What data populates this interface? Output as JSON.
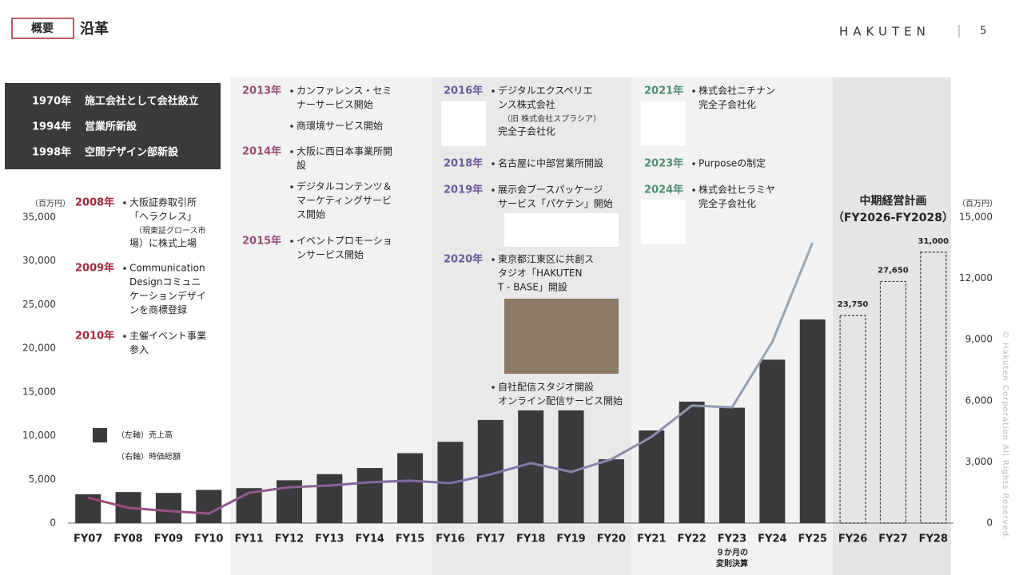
{
  "header": {
    "section": "概要",
    "title": "沿革",
    "logo": "HAKUTEN",
    "page": "5"
  },
  "copyright": "© Hakuten Corporation All Rights Reserved.",
  "history_box": [
    {
      "year": "1970年",
      "text": "施工会社として会社設立"
    },
    {
      "year": "1994年",
      "text": "営業所新設"
    },
    {
      "year": "1998年",
      "text": "空間デザイン部新設"
    }
  ],
  "timeline": [
    {
      "color": "#a0283c",
      "entries": [
        {
          "year": "2008年",
          "items": [
            [
              "大阪証券取引所",
              "「ヘラクレス」",
              "（現東証グロース市",
              "場）に株式上場"
            ]
          ]
        },
        {
          "year": "2009年",
          "items": [
            [
              "Communication",
              "Designコミュニ",
              "ケーションデザイ",
              "ンを商標登録"
            ]
          ]
        },
        {
          "year": "2010年",
          "items": [
            [
              "主催イベント事業",
              "参入"
            ]
          ]
        }
      ]
    },
    {
      "color": "#9a4d72",
      "entries": [
        {
          "year": "2013年",
          "items": [
            [
              "カンファレンス・セミ",
              "ナーサービス開始"
            ],
            [
              "商環境サービス開始"
            ]
          ]
        },
        {
          "year": "2014年",
          "items": [
            [
              "大阪に西日本事業所開",
              "設"
            ],
            [
              "デジタルコンテンツ＆",
              "マーケティングサービ",
              "ス開始"
            ]
          ]
        },
        {
          "year": "2015年",
          "items": [
            [
              "イベントプロモーショ",
              "ンサービス開始"
            ]
          ]
        }
      ]
    },
    {
      "color": "#6b5b9a",
      "entries": [
        {
          "year": "2016年",
          "items": [
            [
              "デジタルエクスペリエ",
              "ンス株式会社",
              "（旧 株式会社スプラシア）",
              "完全子会社化"
            ]
          ]
        },
        {
          "year": "2018年",
          "items": [
            [
              "名古屋に中部営業所開設"
            ]
          ]
        },
        {
          "year": "2019年",
          "items": [
            [
              "展示会ブースパッケージ",
              "サービス「パケテン」開始"
            ]
          ]
        },
        {
          "year": "2020年",
          "items": [
            [
              "東京都江東区に共創ス",
              "タジオ「HAKUTEN",
              "T - BASE」開設"
            ],
            [
              "自社配信スタジオ開設",
              "オンライン配信サービス開始"
            ]
          ]
        }
      ]
    },
    {
      "color": "#4e8f6e",
      "entries": [
        {
          "year": "2021年",
          "items": [
            [
              "株式会社ニチナン",
              "完全子会社化"
            ]
          ]
        },
        {
          "year": "2023年",
          "items": [
            [
              "Purposeの制定"
            ]
          ]
        },
        {
          "year": "2024年",
          "items": [
            [
              "株式会社ヒラミヤ",
              "完全子会社化"
            ]
          ]
        }
      ]
    }
  ],
  "chart_data": {
    "type": "bar-line",
    "plan_label": [
      "中期経営計画",
      "（FY2026-FY2028）"
    ],
    "note": {
      "category": "FY23",
      "lines": [
        "９か月の",
        "変則決算"
      ]
    },
    "y_unit": "（百万円）",
    "y2_unit": "（百万円）",
    "categories": [
      "FY07",
      "FY08",
      "FY09",
      "FY10",
      "FY11",
      "FY12",
      "FY13",
      "FY14",
      "FY15",
      "FY16",
      "FY17",
      "FY18",
      "FY19",
      "FY20",
      "FY21",
      "FY22",
      "FY23",
      "FY24",
      "FY25",
      "FY26",
      "FY27",
      "FY28"
    ],
    "ylim": [
      0,
      35000
    ],
    "yticks": [
      0,
      {
        "value": 5000,
        "label": "5,000"
      },
      {
        "value": 10000,
        "label": "10,000"
      },
      {
        "value": 15000,
        "label": "15,000"
      },
      {
        "value": 20000,
        "label": "20,000"
      },
      {
        "value": 25000,
        "label": "25,000"
      },
      {
        "value": 30000,
        "label": "30,000"
      },
      {
        "value": 35000,
        "label": "35,000"
      }
    ],
    "y2lim": [
      0,
      15000
    ],
    "y2ticks": [
      0,
      {
        "value": 3000,
        "label": "3,000"
      },
      {
        "value": 6000,
        "label": "6,000"
      },
      {
        "value": 9000,
        "label": "9,000"
      },
      {
        "value": 12000,
        "label": "12,000"
      },
      {
        "value": 15000,
        "label": "15,000"
      }
    ],
    "legend": "lower left",
    "series": [
      {
        "name": "（左軸）売上高",
        "type": "bar",
        "color": "#3a3a3c",
        "values": [
          3300,
          3550,
          3450,
          3800,
          4000,
          4900,
          5600,
          6300,
          8000,
          9300,
          11800,
          12900,
          12900,
          7300,
          10600,
          13900,
          13200,
          18700,
          23300,
          23750,
          27650,
          31000
        ],
        "value_labels": [
          null,
          null,
          null,
          null,
          null,
          null,
          null,
          null,
          null,
          null,
          null,
          null,
          null,
          null,
          null,
          null,
          null,
          null,
          null,
          "23,750",
          "27,650",
          "31,000"
        ],
        "dashed": [
          false,
          false,
          false,
          false,
          false,
          false,
          false,
          false,
          false,
          false,
          false,
          false,
          false,
          false,
          false,
          false,
          false,
          false,
          false,
          true,
          true,
          true
        ]
      },
      {
        "name": "（右軸）時価総額",
        "type": "line",
        "axis": "y2",
        "colors": [
          "#a3467a",
          "#7b6fa6",
          "#9aabb3"
        ],
        "values": [
          1250,
          750,
          590,
          470,
          1490,
          1760,
          1840,
          2000,
          2080,
          1960,
          2390,
          2940,
          2510,
          3130,
          4230,
          5760,
          5680,
          8890,
          13750,
          null,
          null,
          null
        ]
      }
    ]
  }
}
